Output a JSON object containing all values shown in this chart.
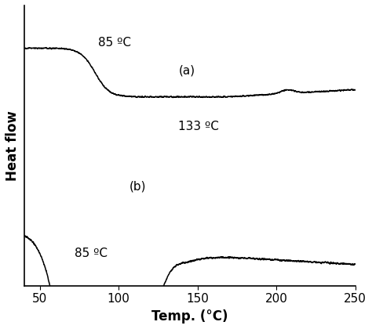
{
  "title": "",
  "xlabel": "Temp. (°C)",
  "ylabel": "Heat flow",
  "xlim": [
    40,
    250
  ],
  "xticks": [
    50,
    100,
    150,
    200,
    250
  ],
  "background_color": "#ffffff",
  "curve_color": "#000000",
  "label_a": "(a)",
  "label_b": "(b)",
  "annot_85_a": "85 ºC",
  "annot_85_b": "85 ºC",
  "annot_133": "133 ºC",
  "fontsize_axis_label": 12,
  "fontsize_tick": 11,
  "fontsize_annot": 11
}
